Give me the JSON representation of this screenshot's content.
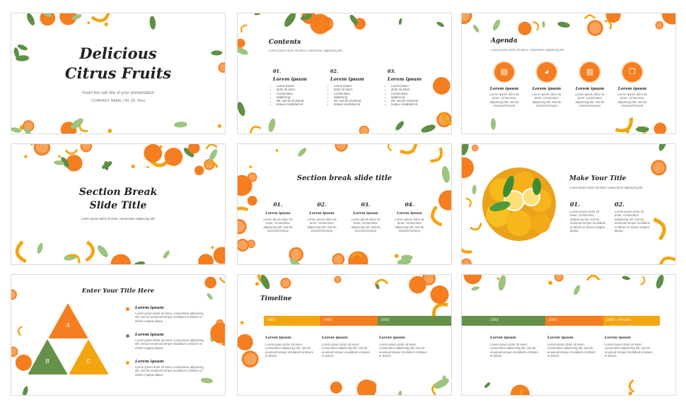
{
  "colors": {
    "orange": "#f47e20",
    "green": "#66914a",
    "yellow": "#f3a50f",
    "leaf": "#5d8f45",
    "peel": "#f9dcc0"
  },
  "slides": {
    "title": {
      "line1": "Delicious",
      "line2": "Citrus Fruits",
      "subtitle": "Insert the sub title of your presentation",
      "company": "COMPANY NAME  /  00. 00. 20xx"
    },
    "contents": {
      "title": "Contents",
      "subtitle": "Lorem ipsum dolor sit amet, consectetur adipiscing elit.",
      "columns": [
        {
          "num": "01.",
          "heading": "Lorem ipsum",
          "bullets": [
            "Lorem ipsum",
            "dolor sit amet,",
            "Consectetur",
            "adipiscing",
            "elit, sed do eiusmod",
            "tempor incididunt ut"
          ]
        },
        {
          "num": "02.",
          "heading": "Lorem ipsum",
          "bullets": [
            "Lorem ipsum",
            "dolor sit amet,",
            "Consectetur",
            "adipiscing",
            "elit, sed do eiusmod",
            "tempor incididunt ut"
          ]
        },
        {
          "num": "03.",
          "heading": "Lorem ipsum",
          "bullets": [
            "Lorem ipsum",
            "dolor sit amet,",
            "Consectetur",
            "adipiscing",
            "elit, sed do eiusmod",
            "tempor incididunt ut"
          ]
        }
      ]
    },
    "agenda": {
      "title": "Agenda",
      "subtitle": "Lorem ipsum dolor sit amet, consectetur adipiscing elit",
      "items": [
        {
          "icon": "clipboard-icon",
          "glyph": "▤",
          "heading": "Lorem ipsum",
          "text": "Lorem ipsum dolor sit amet, consectetur adipiscing elit, sed do eiusmod tempor"
        },
        {
          "icon": "pie-chart-icon",
          "glyph": "◕",
          "heading": "Lorem ipsum",
          "text": "Lorem ipsum dolor sit amet, consectetur adipiscing elit, sed do eiusmod tempor"
        },
        {
          "icon": "bar-chart-icon",
          "glyph": "▥",
          "heading": "Lorem ipsum",
          "text": "Lorem ipsum dolor sit amet, consectetur adipiscing elit, sed do eiusmod tempor"
        },
        {
          "icon": "chat-icon",
          "glyph": "❐",
          "heading": "Lorem ipsum",
          "text": "Lorem ipsum dolor sit amet, consectetur adipiscing elit, sed do eiusmod tempor"
        }
      ]
    },
    "section_break": {
      "line1": "Section Break",
      "line2": "Slide Title",
      "subtitle": "Lorem ipsum dolor sit amet, consectetur adipiscing elit."
    },
    "section_four": {
      "title": "Section break slide title",
      "items": [
        {
          "num": "01.",
          "heading": "Lorem ipsum",
          "text": "Lorem ipsum dolor sit amet, consectetur adipiscing elit, sed do eiusmod tempor"
        },
        {
          "num": "02.",
          "heading": "Lorem ipsum",
          "text": "Lorem ipsum dolor sit amet, consectetur adipiscing elit, sed do eiusmod tempor"
        },
        {
          "num": "03.",
          "heading": "Lorem ipsum",
          "text": "Lorem ipsum dolor sit amet, consectetur adipiscing elit, sed do eiusmod tempor"
        },
        {
          "num": "04.",
          "heading": "Lorem ipsum",
          "text": "Lorem ipsum dolor sit amet, consectetur adipiscing elit, sed do eiusmod tempor"
        }
      ]
    },
    "make_title": {
      "title": "Make Your Title",
      "subtitle": "Lorem ipsum dolor sit amet, consectetur adipiscing elit",
      "items": [
        {
          "num": "01.",
          "text": "Lorem ipsum dolor sit amet, consectetur adipiscing elit, sed do eiusmod tempor incididunt ut labore et dolore magna aliqua."
        },
        {
          "num": "02.",
          "text": "Lorem ipsum dolor sit amet, consectetur adipiscing elit, sed do eiusmod tempor incididunt ut labore et dolore magna aliqua."
        }
      ]
    },
    "triangles": {
      "title": "Enter Your Title Here",
      "labels": [
        "A",
        "B",
        "C"
      ],
      "items": [
        {
          "color": "#f47e20",
          "heading": "Lorem ipsum",
          "text": "Lorem ipsum dolor sit amet, consectetur adipiscing elit, sed do eiusmod tempor incididunt ut labore et dolore magna aliqua."
        },
        {
          "color": "#66914a",
          "heading": "Lorem ipsum",
          "text": "Lorem ipsum dolor sit amet, consectetur adipiscing elit, sed do eiusmod tempor incididunt ut labore et dolore magna aliqua."
        },
        {
          "color": "#f3a50f",
          "heading": "Lorem ipsum",
          "text": "Lorem ipsum dolor sit amet, consectetur adipiscing elit, sed do eiusmod tempor incididunt ut labore et dolore magna aliqua."
        }
      ]
    },
    "timeline1": {
      "title": "Timeline",
      "periods": [
        "19XX",
        "19XX",
        "20XX"
      ],
      "items": [
        {
          "heading": "Lorem ipsum",
          "text": "Lorem ipsum dolor sit amet, consectetur adipiscing elit, sed do eiusmod tempor incididunt ut labore et dolore"
        },
        {
          "heading": "Lorem ipsum",
          "text": "Lorem ipsum dolor sit amet, consectetur adipiscing elit, sed do eiusmod tempor incididunt ut labore et dolore"
        },
        {
          "heading": "Lorem ipsum",
          "text": "Lorem ipsum dolor sit amet, consectetur adipiscing elit, sed do eiusmod tempor incididunt ut labore et dolore"
        }
      ]
    },
    "timeline2": {
      "periods": [
        "20XX",
        "20XX",
        "20XX – Present"
      ],
      "items": [
        {
          "heading": "Lorem ipsum",
          "text": "Lorem ipsum dolor sit amet, consectetur adipiscing elit, sed do eiusmod tempor incididunt ut labore et dolore"
        },
        {
          "heading": "Lorem ipsum",
          "text": "Lorem ipsum dolor sit amet, consectetur adipiscing elit, sed do eiusmod tempor incididunt ut labore et dolore"
        },
        {
          "heading": "Lorem ipsum",
          "text": "Lorem ipsum dolor sit amet, consectetur adipiscing elit, sed do eiusmod tempor incididunt ut labore et dolore"
        }
      ]
    }
  }
}
